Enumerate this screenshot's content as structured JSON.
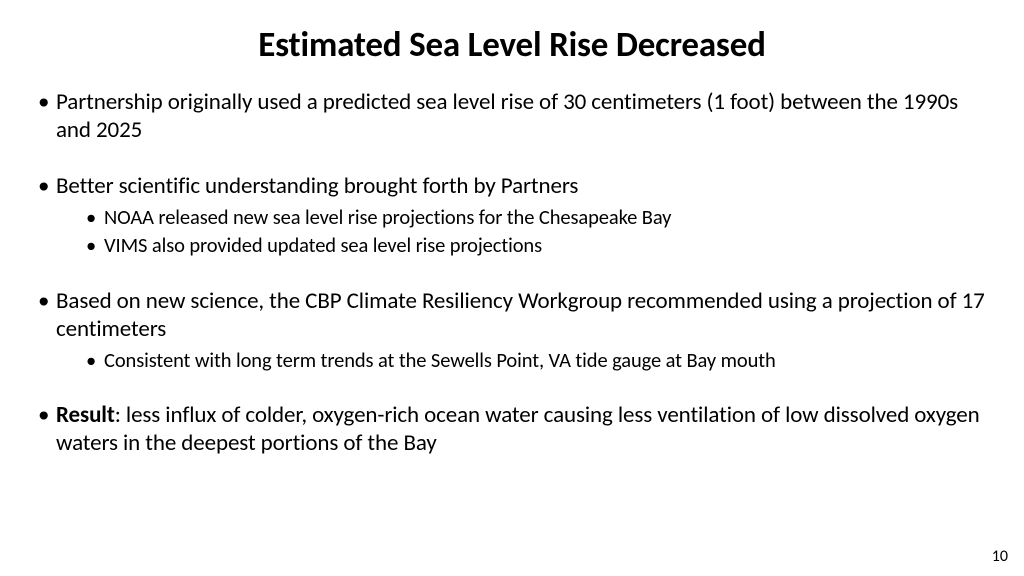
{
  "slide": {
    "title": "Estimated Sea Level Rise Decreased",
    "page_number": "10",
    "background_color": "#ffffff",
    "text_color": "#000000",
    "title_fontsize": 35,
    "body_fontsize": 23,
    "sub_fontsize": 20.5,
    "font_family": "Calibri",
    "bullets": [
      {
        "text": "Partnership originally used a predicted sea level rise of 30 centimeters (1 foot) between the 1990s and 2025",
        "sub": []
      },
      {
        "text": "Better scientific understanding brought forth by Partners",
        "sub": [
          "NOAA released new sea level rise projections for the Chesapeake Bay",
          "VIMS also provided updated sea level rise projections"
        ]
      },
      {
        "text": "Based on new science, the CBP Climate Resiliency Workgroup recommended using a projection of 17 centimeters",
        "sub": [
          "Consistent with long term trends at the Sewells Point, VA tide gauge at Bay mouth"
        ]
      },
      {
        "bold_prefix": "Result",
        "text_after": ": less influx of colder, oxygen-rich ocean water causing less ventilation of low dissolved oxygen waters in the deepest portions of the Bay",
        "sub": []
      }
    ]
  }
}
